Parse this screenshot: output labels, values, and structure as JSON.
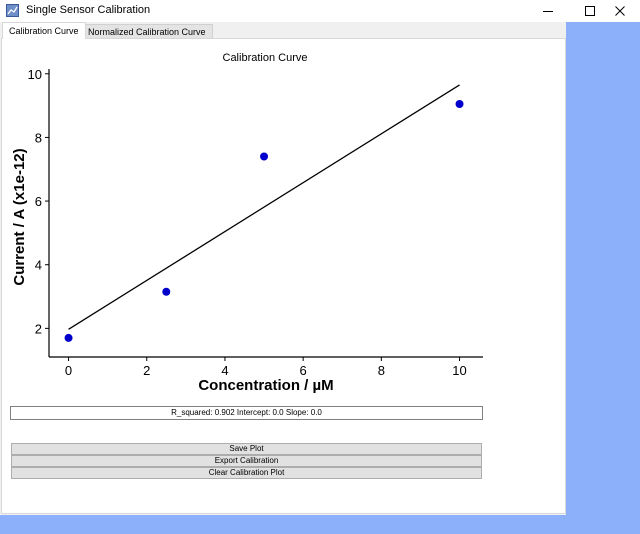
{
  "window": {
    "title": "Single Sensor Calibration",
    "icon": "app-icon",
    "controls": [
      "minimize-icon",
      "maximize-icon",
      "close-icon"
    ]
  },
  "tabs": [
    {
      "label": "Calibration Curve",
      "active": true
    },
    {
      "label": "Normalized Calibration Curve",
      "active": false
    }
  ],
  "chart_data": {
    "type": "scatter",
    "title": "Calibration Curve",
    "xlabel": "Concentration / µM",
    "ylabel": "Current / A (x1e-12)",
    "xlim": [
      -0.5,
      10.6
    ],
    "ylim": [
      1.1,
      10.15
    ],
    "x_ticks": [
      0,
      2,
      4,
      6,
      8,
      10
    ],
    "y_ticks": [
      2,
      4,
      6,
      8,
      10
    ],
    "points": {
      "x": [
        0,
        2.5,
        5,
        10
      ],
      "y": [
        1.7,
        3.15,
        7.4,
        9.05
      ]
    },
    "fit_line": {
      "x": [
        0,
        10
      ],
      "y": [
        1.97,
        9.65
      ]
    },
    "point_color": "#0000cc",
    "line_color": "#000000",
    "grid": false
  },
  "stats_text": "R_squared: 0.902 Intercept: 0.0 Slope: 0.0",
  "buttons": {
    "save": "Save Plot",
    "export": "Export Calibration",
    "clear": "Clear Calibration Plot"
  }
}
